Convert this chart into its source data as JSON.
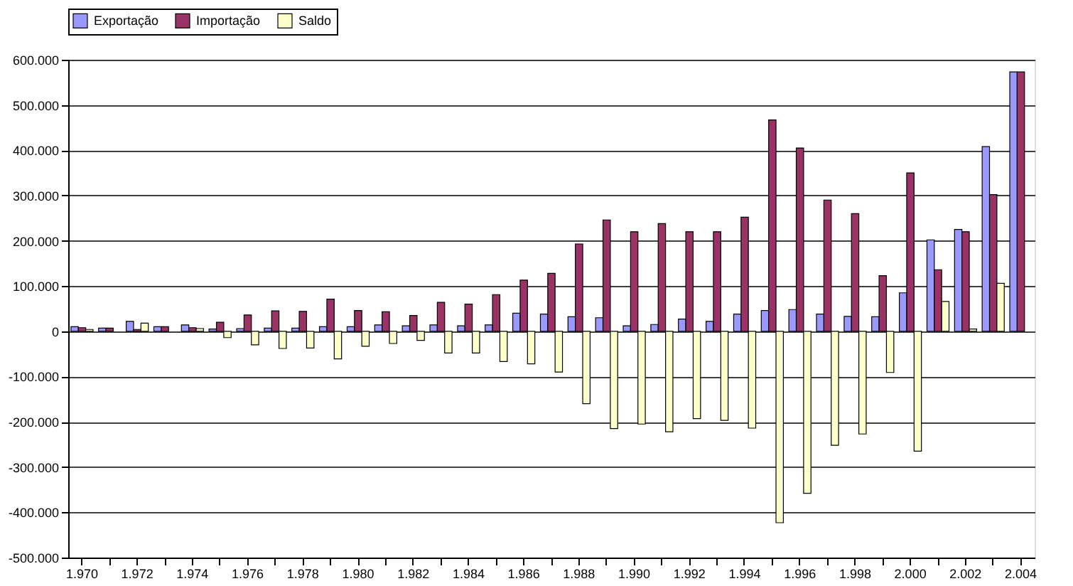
{
  "chart_data": {
    "type": "bar",
    "categories": [
      "1.970",
      null,
      "1.972",
      null,
      "1.974",
      null,
      "1.976",
      null,
      "1.978",
      null,
      "1.980",
      null,
      "1.982",
      null,
      "1.984",
      null,
      "1.986",
      null,
      "1.988",
      null,
      "1.990",
      null,
      "1.992",
      null,
      "1.994",
      null,
      "1.996",
      null,
      "1.998",
      null,
      "2.000",
      null,
      "2.002",
      null,
      "2.004"
    ],
    "series": [
      {
        "name": "Exportação",
        "color": "#9999ff",
        "values": [
          10000,
          7000,
          22000,
          10000,
          14000,
          5000,
          6000,
          7000,
          7000,
          10000,
          10000,
          14000,
          12000,
          14000,
          12000,
          14000,
          40000,
          38000,
          32000,
          30000,
          12000,
          15000,
          27000,
          22000,
          38000,
          46000,
          48000,
          38000,
          33000,
          32000,
          85000,
          202000,
          225000,
          408000,
          573000
        ]
      },
      {
        "name": "Importação",
        "color": "#993366",
        "values": [
          8000,
          7000,
          4000,
          10000,
          8000,
          20000,
          36000,
          45000,
          44000,
          71000,
          46000,
          43000,
          35000,
          64000,
          60000,
          81000,
          113000,
          128000,
          193000,
          246000,
          220000,
          238000,
          220000,
          220000,
          252000,
          467000,
          405000,
          290000,
          260000,
          123000,
          350000,
          136000,
          220000,
          302000,
          573000
        ]
      },
      {
        "name": "Saldo",
        "color": "#ffffcc",
        "values": [
          4000,
          null,
          18000,
          null,
          6000,
          -14000,
          -30000,
          -38000,
          -37000,
          -61000,
          -33000,
          -27000,
          -20000,
          -48000,
          -48000,
          -67000,
          -72000,
          -90000,
          -160000,
          -215000,
          -205000,
          -222000,
          -193000,
          -197000,
          -214000,
          -423000,
          -358000,
          -252000,
          -227000,
          -91000,
          -265000,
          66000,
          5000,
          106000,
          null
        ]
      }
    ],
    "ylim": [
      -500000,
      600000
    ],
    "yticks": [
      {
        "value": -500000,
        "label": "-500.000"
      },
      {
        "value": -400000,
        "label": "-400.000"
      },
      {
        "value": -300000,
        "label": "-300.000"
      },
      {
        "value": -200000,
        "label": "-200.000"
      },
      {
        "value": -100000,
        "label": "-100.000"
      },
      {
        "value": 0,
        "label": "0"
      },
      {
        "value": 100000,
        "label": "100.000"
      },
      {
        "value": 200000,
        "label": "200.000"
      },
      {
        "value": 300000,
        "label": "300.000"
      },
      {
        "value": 400000,
        "label": "400.000"
      },
      {
        "value": 500000,
        "label": "500.000"
      },
      {
        "value": 600000,
        "label": "600.000"
      }
    ],
    "grid": "y",
    "legend": "top"
  }
}
